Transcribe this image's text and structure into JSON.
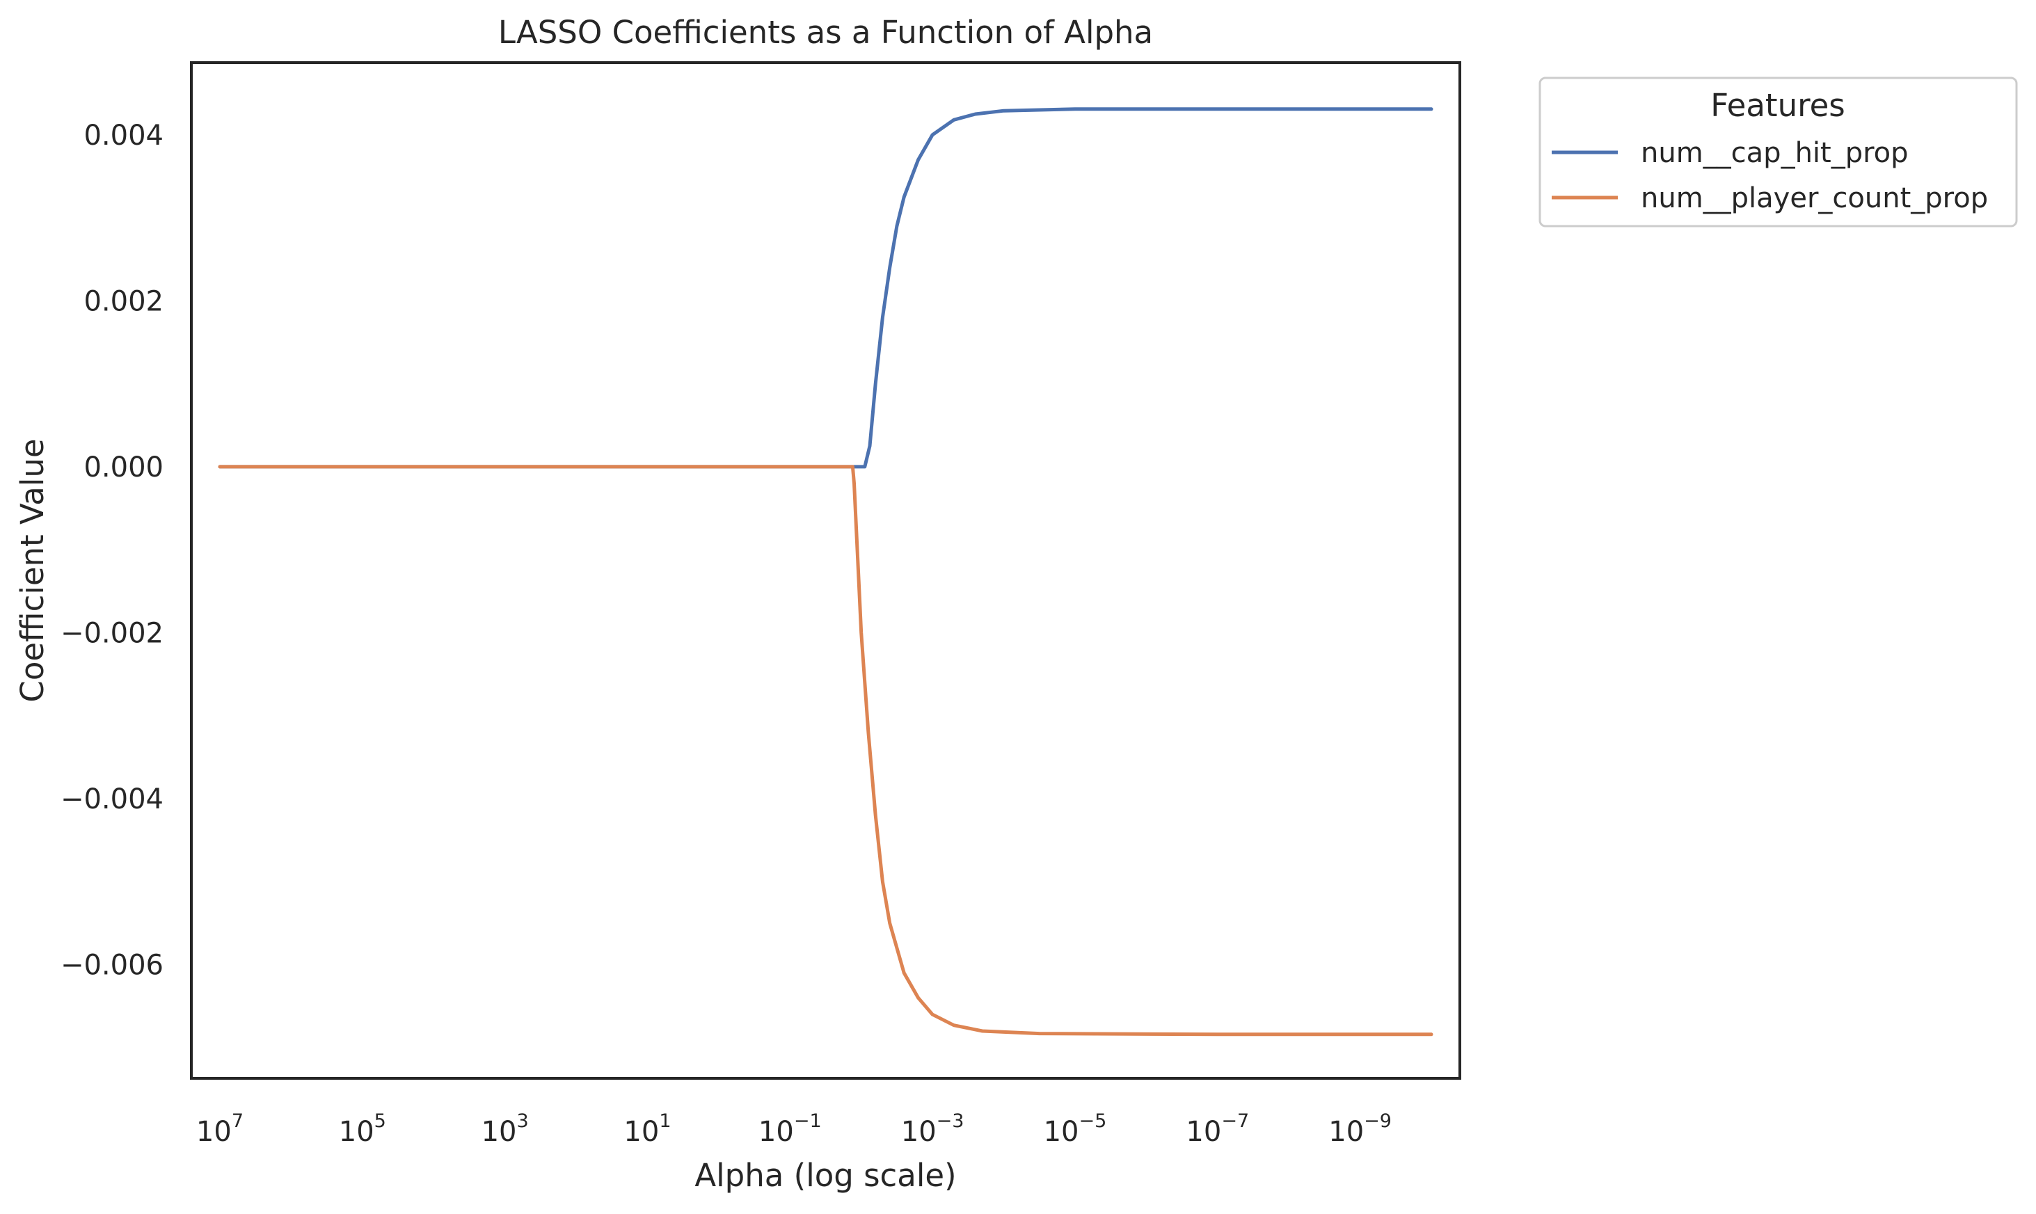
{
  "chart_data": {
    "type": "line",
    "title": "LASSO Coefficients as a Function of Alpha",
    "xlabel": "Alpha (log scale)",
    "ylabel": "Coefficient Value",
    "x_scale": "log",
    "x_inverted": true,
    "xlim_log10": [
      7.4,
      -10.4
    ],
    "ylim": [
      -0.00737,
      0.00487
    ],
    "x_ticks": [
      {
        "base": "10",
        "exp": "7",
        "log10": 7
      },
      {
        "base": "10",
        "exp": "5",
        "log10": 5
      },
      {
        "base": "10",
        "exp": "3",
        "log10": 3
      },
      {
        "base": "10",
        "exp": "1",
        "log10": 1
      },
      {
        "base": "10",
        "exp": "−1",
        "log10": -1
      },
      {
        "base": "10",
        "exp": "−3",
        "log10": -3
      },
      {
        "base": "10",
        "exp": "−5",
        "log10": -5
      },
      {
        "base": "10",
        "exp": "−7",
        "log10": -7
      },
      {
        "base": "10",
        "exp": "−9",
        "log10": -9
      }
    ],
    "y_ticks": [
      {
        "value": 0.004,
        "label": "0.004"
      },
      {
        "value": 0.002,
        "label": "0.002"
      },
      {
        "value": 0.0,
        "label": "0.000"
      },
      {
        "value": -0.002,
        "label": "−0.002"
      },
      {
        "value": -0.004,
        "label": "−0.004"
      },
      {
        "value": -0.006,
        "label": "−0.006"
      }
    ],
    "grid": false,
    "legend": {
      "title": "Features",
      "placement": "outside-top-right"
    },
    "series": [
      {
        "name": "num__cap_hit_prop",
        "color": "#4c72b0",
        "points": [
          [
            7,
            0
          ],
          [
            4,
            0
          ],
          [
            1,
            0
          ],
          [
            -1,
            0
          ],
          [
            -1.8,
            0
          ],
          [
            -2.05,
            0
          ],
          [
            -2.12,
            0.00025
          ],
          [
            -2.2,
            0.001
          ],
          [
            -2.3,
            0.0018
          ],
          [
            -2.4,
            0.0024
          ],
          [
            -2.5,
            0.0029
          ],
          [
            -2.6,
            0.00325
          ],
          [
            -2.8,
            0.0037
          ],
          [
            -3.0,
            0.004
          ],
          [
            -3.3,
            0.00418
          ],
          [
            -3.6,
            0.00425
          ],
          [
            -4.0,
            0.00429
          ],
          [
            -5.0,
            0.00431
          ],
          [
            -7.0,
            0.00431
          ],
          [
            -10.0,
            0.00431
          ]
        ]
      },
      {
        "name": "num__player_count_prop",
        "color": "#dd8452",
        "points": [
          [
            7,
            0
          ],
          [
            4,
            0
          ],
          [
            1,
            0
          ],
          [
            -1,
            0
          ],
          [
            -1.88,
            0
          ],
          [
            -1.9,
            -0.0002
          ],
          [
            -1.95,
            -0.0011
          ],
          [
            -2.0,
            -0.002
          ],
          [
            -2.1,
            -0.0032
          ],
          [
            -2.2,
            -0.0042
          ],
          [
            -2.3,
            -0.005
          ],
          [
            -2.4,
            -0.0055
          ],
          [
            -2.6,
            -0.0061
          ],
          [
            -2.8,
            -0.0064
          ],
          [
            -3.0,
            -0.0066
          ],
          [
            -3.3,
            -0.00673
          ],
          [
            -3.7,
            -0.0068
          ],
          [
            -4.5,
            -0.00683
          ],
          [
            -7.0,
            -0.00684
          ],
          [
            -10.0,
            -0.00684
          ]
        ]
      }
    ]
  }
}
